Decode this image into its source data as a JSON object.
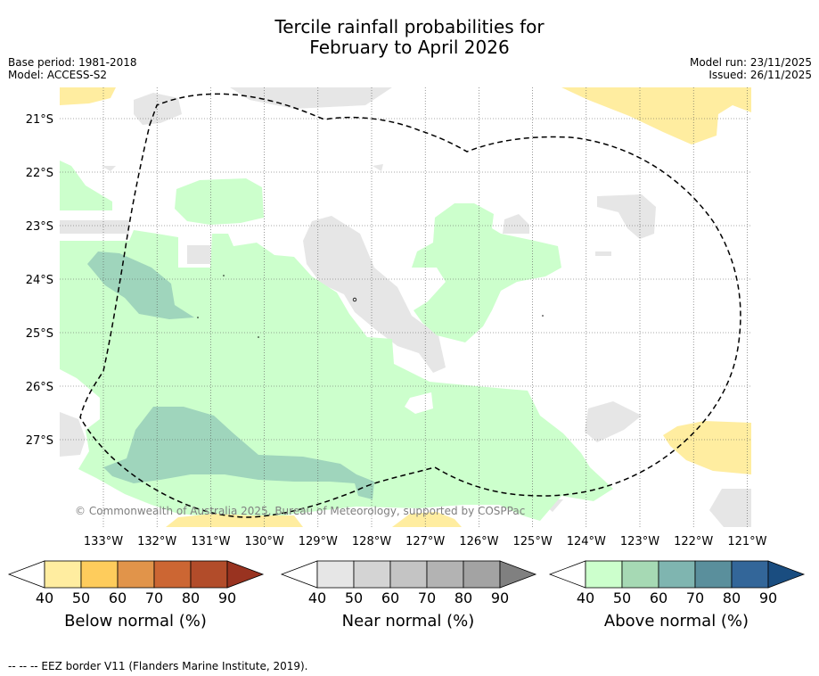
{
  "title": {
    "line1": "Tercile rainfall probabilities for",
    "line2": "February to April 2026"
  },
  "meta_left": {
    "base_period": "Base period: 1981-2018",
    "model": "Model: ACCESS-S2"
  },
  "meta_right": {
    "model_run": "Model run: 23/11/2025",
    "issued": "Issued: 26/11/2025"
  },
  "map": {
    "lat_labels": [
      "21°S",
      "22°S",
      "23°S",
      "24°S",
      "25°S",
      "26°S",
      "27°S"
    ],
    "lon_labels": [
      "133°W",
      "132°W",
      "131°W",
      "130°W",
      "129°W",
      "128°W",
      "127°W",
      "126°W",
      "125°W",
      "124°W",
      "123°W",
      "122°W",
      "121°W"
    ],
    "copyright": "© Commonwealth of Australia 2025, Bureau of Meteorology, supported by COSPPac",
    "colors": {
      "below_40": "#ffeda0",
      "near_40": "#e6e6e6",
      "above_40": "#ccffcc",
      "above_50": "#9fd5bc",
      "eez_line": "#000000"
    }
  },
  "colorbars": [
    {
      "name": "below",
      "title": "Below normal (%)",
      "ticks": [
        "40",
        "50",
        "60",
        "70",
        "80",
        "90"
      ],
      "colors": [
        "#ffeda0",
        "#fecc5c",
        "#e1944a",
        "#cc6633",
        "#b24c2a",
        "#993320"
      ]
    },
    {
      "name": "near",
      "title": "Near normal (%)",
      "ticks": [
        "40",
        "50",
        "60",
        "70",
        "80",
        "90"
      ],
      "colors": [
        "#e6e6e6",
        "#d4d4d4",
        "#c4c4c4",
        "#b3b3b3",
        "#a3a3a3",
        "#808080"
      ]
    },
    {
      "name": "above",
      "title": "Above normal (%)",
      "ticks": [
        "40",
        "50",
        "60",
        "70",
        "80",
        "90"
      ],
      "colors": [
        "#ccffcc",
        "#a6d9b4",
        "#7fb5b0",
        "#5a8f9c",
        "#336699",
        "#1a4d80"
      ]
    }
  ],
  "footer": "--  --  -- EEZ border V11 (Flanders Marine Institute, 2019)."
}
